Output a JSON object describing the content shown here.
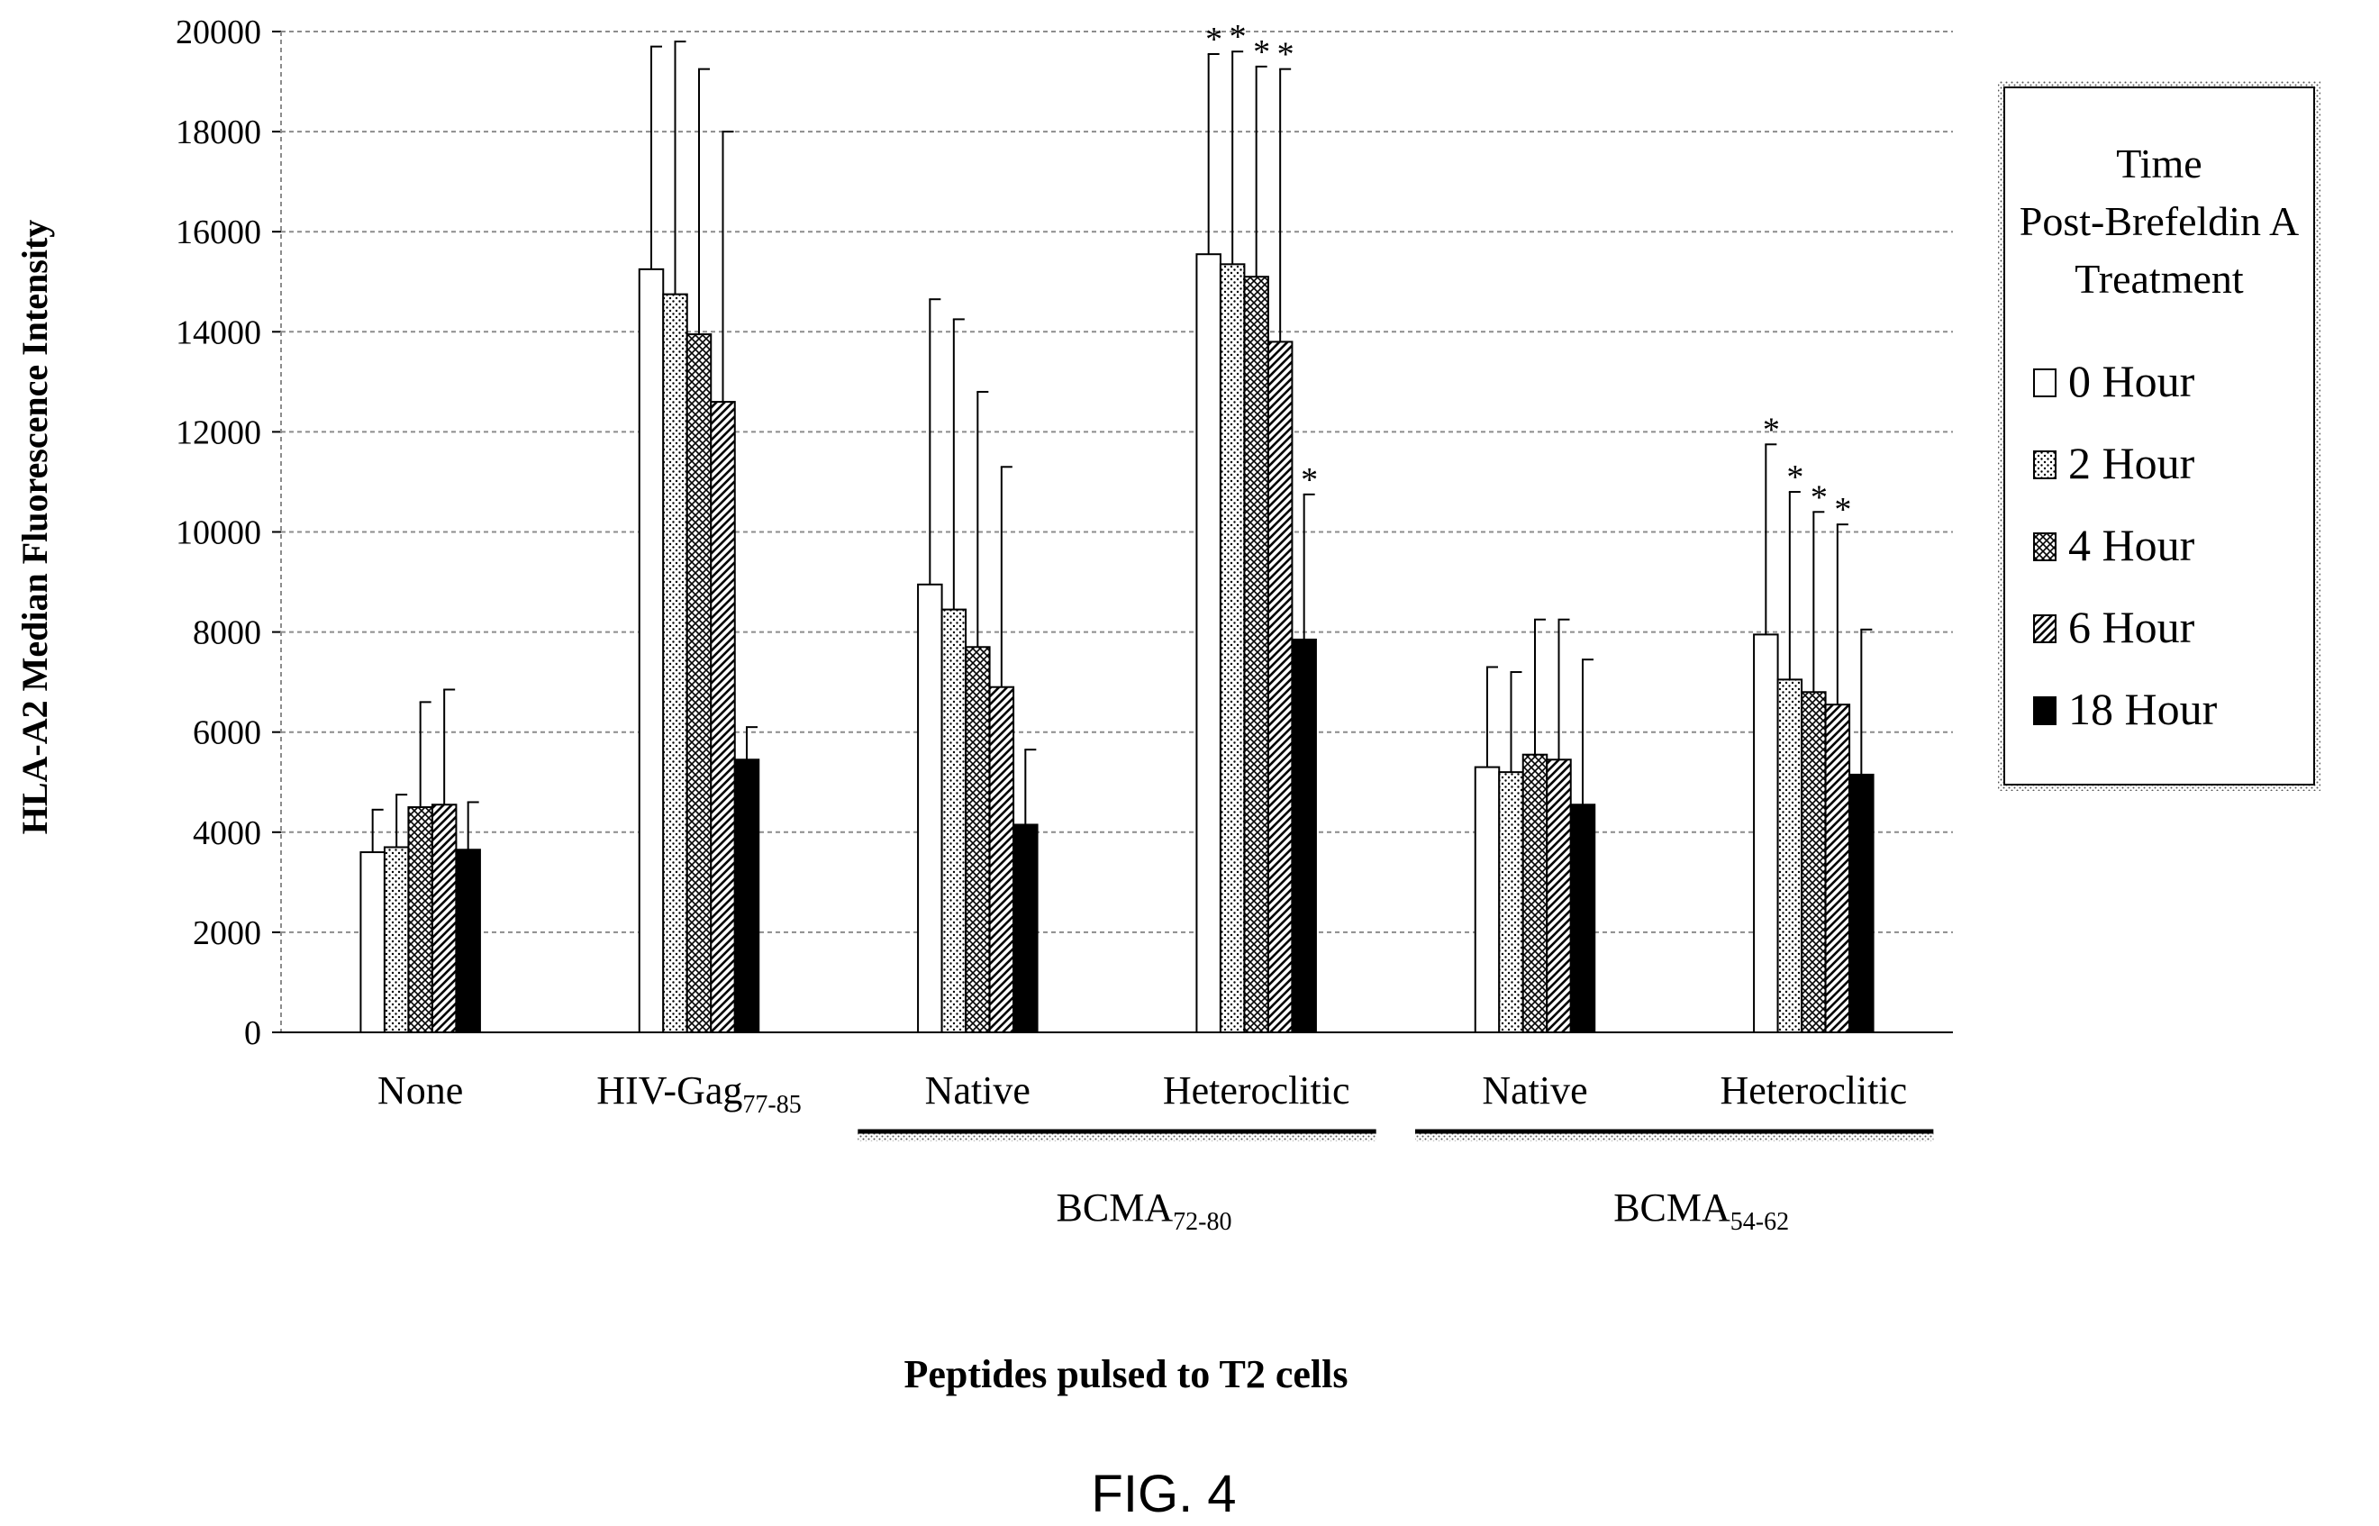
{
  "figure_label": "FIG. 4",
  "colors": {
    "ink": "#000000",
    "grid": "#8c8c8c",
    "background": "#ffffff"
  },
  "chart_data": {
    "type": "bar",
    "title": "",
    "ylabel": "HLA-A2 Median Fluorescence Intensity",
    "xlabel": "Peptides pulsed to T2 cells",
    "ylim": [
      0,
      20000
    ],
    "yticks": [
      0,
      2000,
      4000,
      6000,
      8000,
      10000,
      12000,
      14000,
      16000,
      18000,
      20000
    ],
    "grid": "horizontal dashed",
    "categories": [
      {
        "label": "None",
        "sub": ""
      },
      {
        "label": "HIV-Gag",
        "sub": "77-85"
      },
      {
        "label": "Native",
        "sub": ""
      },
      {
        "label": "Heteroclitic",
        "sub": ""
      },
      {
        "label": "Native",
        "sub": ""
      },
      {
        "label": "Heteroclitic",
        "sub": ""
      }
    ],
    "groups": [
      {
        "label": "BCMA",
        "sub": "72-80",
        "categories": [
          2,
          3
        ]
      },
      {
        "label": "BCMA",
        "sub": "54-62",
        "categories": [
          4,
          5
        ]
      }
    ],
    "legend": {
      "title_lines": [
        "Time",
        "Post-Brefeldin A",
        "Treatment"
      ],
      "placement": "right"
    },
    "series": [
      {
        "name": "0 Hour",
        "pattern": "white",
        "values": [
          3600,
          15250,
          8950,
          15550,
          5300,
          7950
        ],
        "errors": [
          850,
          4450,
          5700,
          4000,
          2000,
          3800
        ]
      },
      {
        "name": "2 Hour",
        "pattern": "dots",
        "values": [
          3700,
          14750,
          8450,
          15350,
          5200,
          7050
        ],
        "errors": [
          1050,
          5050,
          5800,
          4250,
          2000,
          3750
        ]
      },
      {
        "name": "4 Hour",
        "pattern": "crosshatch",
        "values": [
          4500,
          13950,
          7700,
          15100,
          5550,
          6800
        ],
        "errors": [
          2100,
          5300,
          5100,
          4200,
          2700,
          3600
        ]
      },
      {
        "name": "6 Hour",
        "pattern": "diagonal",
        "values": [
          4550,
          12600,
          6900,
          13800,
          5450,
          6550
        ],
        "errors": [
          2300,
          5400,
          4400,
          5450,
          2800,
          3600
        ]
      },
      {
        "name": "18 Hour",
        "pattern": "black",
        "values": [
          3650,
          5450,
          4150,
          7850,
          4550,
          5150
        ],
        "errors": [
          950,
          650,
          1500,
          2900,
          2900,
          2900
        ]
      }
    ],
    "significance": [
      {
        "category": 3,
        "series": 0,
        "mark": "*"
      },
      {
        "category": 3,
        "series": 1,
        "mark": "*"
      },
      {
        "category": 3,
        "series": 2,
        "mark": "*"
      },
      {
        "category": 3,
        "series": 3,
        "mark": "*"
      },
      {
        "category": 3,
        "series": 4,
        "mark": "*"
      },
      {
        "category": 5,
        "series": 0,
        "mark": "*"
      },
      {
        "category": 5,
        "series": 1,
        "mark": "*"
      },
      {
        "category": 5,
        "series": 2,
        "mark": "*"
      },
      {
        "category": 5,
        "series": 3,
        "mark": "*"
      }
    ]
  }
}
